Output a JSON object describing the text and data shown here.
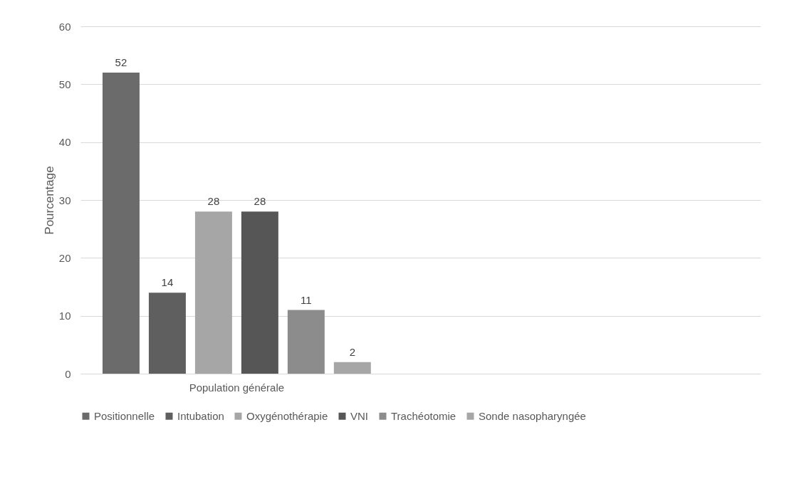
{
  "chart_data": {
    "type": "bar",
    "ylabel": "Pourcentage",
    "categories": [
      "Population générale",
      null
    ],
    "series": [
      {
        "name": "Positionnelle",
        "color": "#6b6b6b",
        "values": [
          52,
          null
        ]
      },
      {
        "name": "Intubation",
        "color": "#5f5f5f",
        "values": [
          14,
          null
        ]
      },
      {
        "name": "Oxygénothérapie",
        "color": "#a6a6a6",
        "values": [
          28,
          null
        ]
      },
      {
        "name": "VNI",
        "color": "#565656",
        "values": [
          28,
          null
        ]
      },
      {
        "name": "Trachéotomie",
        "color": "#8c8c8c",
        "values": [
          11,
          null
        ]
      },
      {
        "name": "Sonde nasopharyngée",
        "color": "#a6a6a6",
        "values": [
          2,
          null
        ]
      }
    ],
    "ylim": [
      0,
      60
    ],
    "yticks": [
      0,
      10,
      20,
      30,
      40,
      50,
      60
    ],
    "grid": "y",
    "legend": "bottom",
    "data_labels": true
  }
}
